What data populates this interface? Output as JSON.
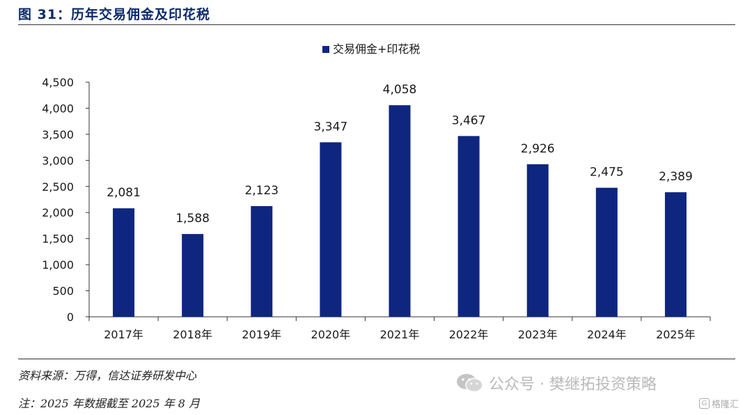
{
  "header": {
    "title": "图 31：历年交易佣金及印花税"
  },
  "chart_data": {
    "type": "bar",
    "title": "",
    "xlabel": "",
    "ylabel": "",
    "ylim": [
      0,
      4500
    ],
    "yticks": [
      0,
      500,
      1000,
      1500,
      2000,
      2500,
      3000,
      3500,
      4000,
      4500
    ],
    "ytick_labels": [
      "0",
      "500",
      "1,000",
      "1,500",
      "2,000",
      "2,500",
      "3,000",
      "3,500",
      "4,000",
      "4,500"
    ],
    "categories": [
      "2017年",
      "2018年",
      "2019年",
      "2020年",
      "2021年",
      "2022年",
      "2023年",
      "2024年",
      "2025年"
    ],
    "series": [
      {
        "name": "交易佣金+印花税",
        "values": [
          2081,
          1588,
          2123,
          3347,
          4058,
          3467,
          2926,
          2475,
          2389
        ],
        "labels": [
          "2,081",
          "1,588",
          "2,123",
          "3,347",
          "4,058",
          "3,467",
          "2,926",
          "2,475",
          "2,389"
        ],
        "color": "#0f2680"
      }
    ],
    "grid": false,
    "legend_position": "top-center"
  },
  "footer": {
    "source": "资料来源：万得，信达证券研发中心",
    "note": "注：2025 年数据截至 2025 年 8 月"
  },
  "watermark": {
    "text": "公众号 · 樊继拓投资策略",
    "icon": "wechat-icon"
  },
  "badge": {
    "text": "格隆汇",
    "icon_text": "G"
  }
}
